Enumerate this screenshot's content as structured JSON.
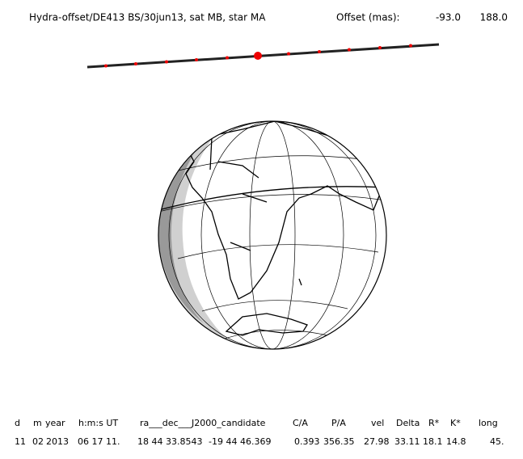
{
  "header": {
    "title": "Hydra-offset/DE413 BS/30jun13, sat MB, star MA",
    "offset_label": "Offset (mas):",
    "offset_values": [
      "-93.0",
      "188.0"
    ]
  },
  "table": {
    "columns": [
      "d",
      "m",
      "year",
      "h:m:s UT",
      "ra___dec___J2000_candidate",
      "C/A",
      "P/A",
      "vel",
      "Delta",
      "R*",
      "K*",
      "long"
    ],
    "rows": [
      [
        "11",
        "02",
        "2013",
        "06 17 11.",
        "18 44 33.8543",
        "-19 44 46.369",
        "0.393",
        "356.35",
        "27.98",
        "33.11",
        "18.1",
        "14.8",
        "45."
      ]
    ]
  }
}
